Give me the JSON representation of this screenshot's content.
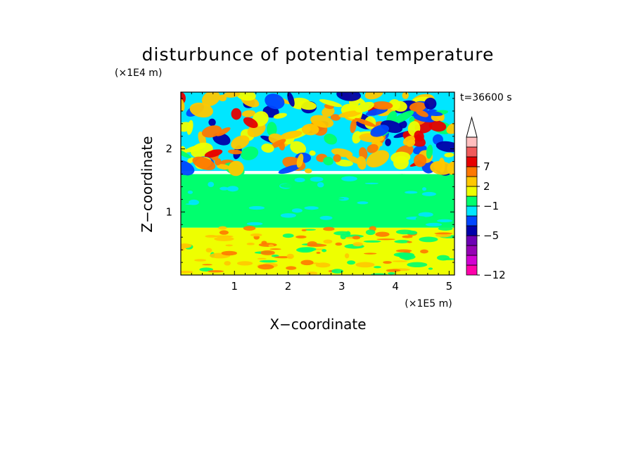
{
  "chart_data": {
    "type": "heatmap",
    "title": "disturbunce of potential temperature",
    "time_label": "t=36600 s",
    "xlabel": "X−coordinate",
    "ylabel": "Z−coordinate",
    "x_scale_note": "(×1E5 m)",
    "y_scale_note": "(×1E4 m)",
    "xlim": [
      0,
      5.1
    ],
    "ylim": [
      0,
      2.9
    ],
    "x_ticks": [
      1,
      2,
      3,
      4,
      5
    ],
    "x_tick_labels": [
      "1",
      "2",
      "3",
      "4",
      "5"
    ],
    "y_ticks": [
      1,
      2
    ],
    "y_tick_labels": [
      "1",
      "2"
    ],
    "colorbar": {
      "levels_bottom_to_top": [
        "#ff00aa",
        "#d200d2",
        "#9600b4",
        "#6e00b4",
        "#0000aa",
        "#0046ff",
        "#00e6ff",
        "#00ff6e",
        "#eeff00",
        "#ffc800",
        "#ff7800",
        "#e60000",
        "#f05a5a",
        "#ffbebe"
      ],
      "extend_top_color": "#ffffff",
      "labels": [
        {
          "text": "−12",
          "index": 0
        },
        {
          "text": "−5",
          "index": 4
        },
        {
          "text": "−1",
          "index": 7
        },
        {
          "text": "2",
          "index": 9
        },
        {
          "text": "7",
          "index": 11
        }
      ]
    },
    "field_regions": [
      {
        "name": "upper-disturbed-layer",
        "x": [
          0,
          5.1
        ],
        "y": [
          1.65,
          2.9
        ],
        "dominant_color": "#00e6ff"
      },
      {
        "name": "middle-band",
        "x": [
          0,
          5.1
        ],
        "y": [
          0.75,
          1.6
        ],
        "dominant_color": "#00ff6e"
      },
      {
        "name": "lower-layer",
        "x": [
          0,
          5.1
        ],
        "y": [
          0,
          0.75
        ],
        "dominant_color": "#eeff00"
      }
    ]
  }
}
